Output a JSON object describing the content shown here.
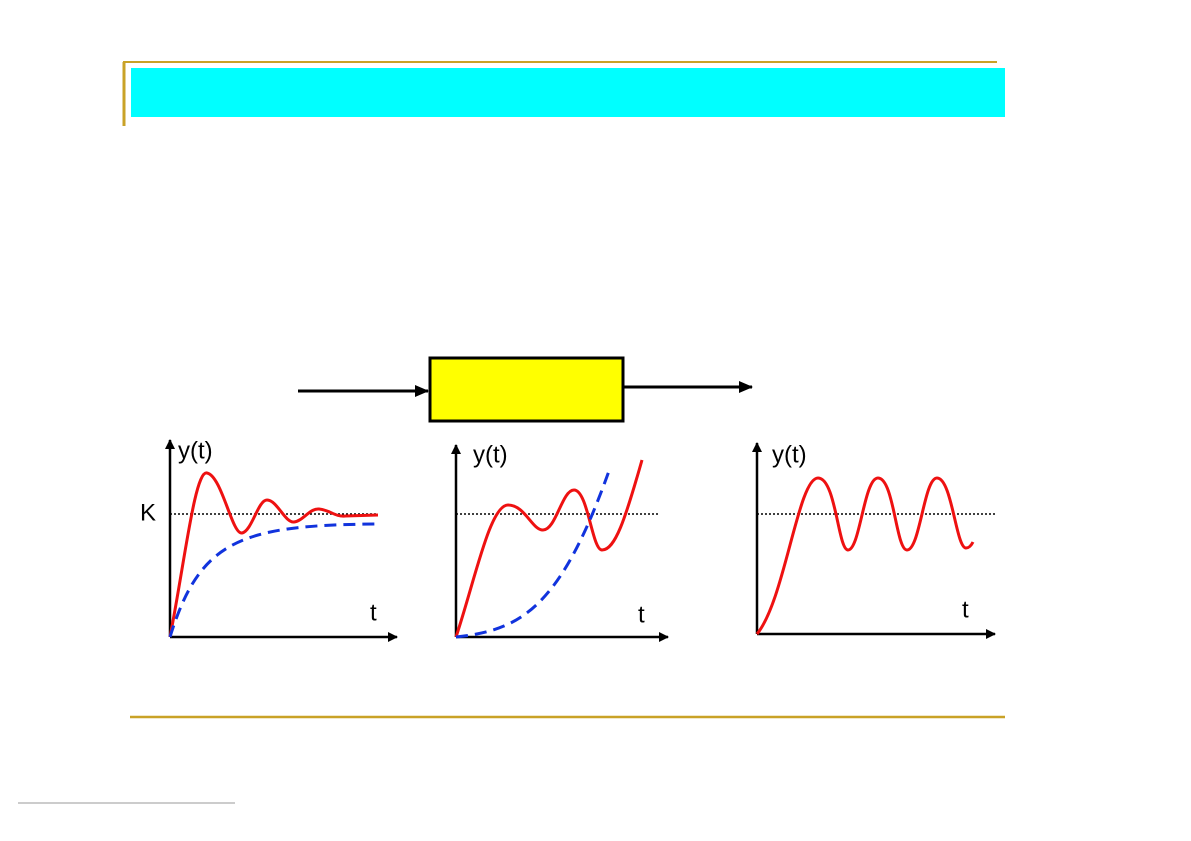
{
  "plots": [
    {
      "y_label": "y(t)",
      "x_label": "t",
      "level_label": "K"
    },
    {
      "y_label": "y(t)",
      "x_label": "t"
    },
    {
      "y_label": "y(t)",
      "x_label": "t"
    }
  ]
}
